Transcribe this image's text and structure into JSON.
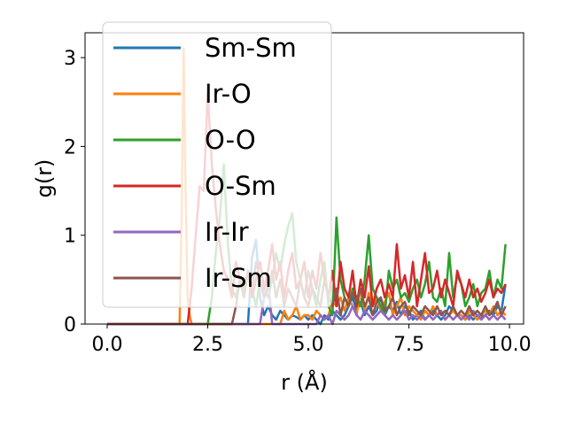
{
  "chart_data": {
    "type": "line",
    "title": "",
    "xlabel": "r (Å)",
    "ylabel": "g(r)",
    "xlim": [
      -0.55,
      10.35
    ],
    "ylim": [
      0,
      3.28
    ],
    "xticks": [
      0.0,
      2.5,
      5.0,
      7.5,
      10.0
    ],
    "xtick_labels": [
      "0.0",
      "2.5",
      "5.0",
      "7.5",
      "10.0"
    ],
    "yticks": [
      0,
      1,
      2,
      3
    ],
    "ytick_labels": [
      "0",
      "1",
      "2",
      "3"
    ],
    "grid": false,
    "legend_position": "upper-left",
    "series": [
      {
        "name": "Sm-Sm",
        "color": "#1f77b4",
        "x": [
          0,
          3.5,
          3.6,
          3.7,
          3.8,
          3.9,
          4.0,
          4.1,
          4.2,
          4.3,
          4.4,
          4.5,
          4.6,
          4.7,
          4.8,
          4.9,
          5.0,
          5.1,
          5.2,
          5.3,
          5.4,
          5.5,
          5.6,
          5.7,
          5.8,
          5.9,
          6.0,
          6.1,
          6.2,
          6.3,
          6.4,
          6.5,
          6.6,
          6.7,
          6.8,
          6.9,
          7.0,
          7.1,
          7.2,
          7.3,
          7.4,
          7.5,
          7.6,
          7.7,
          7.8,
          7.9,
          8.0,
          8.1,
          8.2,
          8.3,
          8.4,
          8.5,
          8.6,
          8.7,
          8.8,
          8.9,
          9.0,
          9.1,
          9.2,
          9.3,
          9.4,
          9.5,
          9.6,
          9.7,
          9.8,
          9.9
        ],
        "y": [
          0,
          0,
          0.75,
          0.95,
          0.3,
          0.1,
          0.2,
          0.1,
          0.05,
          0.15,
          0.1,
          0.05,
          0.1,
          0.08,
          0.05,
          0.1,
          0.05,
          0.1,
          0.05,
          0.0,
          0.1,
          0.05,
          0.15,
          0.1,
          0.05,
          0.1,
          0.2,
          0.3,
          0.15,
          0.25,
          0.1,
          0.2,
          0.1,
          0.15,
          0.3,
          0.1,
          0.2,
          0.15,
          0.25,
          0.1,
          0.2,
          0.15,
          0.05,
          0.1,
          0.15,
          0.05,
          0.1,
          0.15,
          0.1,
          0.05,
          0.1,
          0.2,
          0.15,
          0.1,
          0.1,
          0.05,
          0.1,
          0.05,
          0.1,
          0.08,
          0.1,
          0.15,
          0.1,
          0.2,
          0.15,
          0.45
        ]
      },
      {
        "name": "Ir-O",
        "color": "#ff7f0e",
        "x": [
          0,
          1.8,
          1.85,
          1.9,
          1.95,
          2.0,
          2.05,
          2.1,
          4.3,
          4.4,
          4.5,
          4.6,
          4.7,
          4.8,
          4.9,
          5.0,
          5.1,
          5.2,
          5.3,
          5.4,
          5.5,
          5.6,
          5.7,
          5.8,
          5.9,
          6.0,
          6.1,
          6.2,
          6.3,
          6.4,
          6.5,
          6.6,
          6.7,
          6.8,
          6.9,
          7.0,
          7.1,
          7.2,
          7.3,
          7.4,
          7.5,
          7.6,
          7.7,
          7.8,
          7.9,
          8.0,
          8.1,
          8.2,
          8.3,
          8.4,
          8.5,
          8.6,
          8.7,
          8.8,
          8.9,
          9.0,
          9.1,
          9.2,
          9.3,
          9.4,
          9.5,
          9.6,
          9.7,
          9.8,
          9.9
        ],
        "y": [
          0,
          0,
          1.2,
          3.1,
          1.5,
          0.3,
          0.1,
          0,
          0,
          0.15,
          0.05,
          0.1,
          0.2,
          0.05,
          0.1,
          0.1,
          0.05,
          0.15,
          0.1,
          0.05,
          0.1,
          0.25,
          0.2,
          0.3,
          0.15,
          0.3,
          0.2,
          0.1,
          0.4,
          0.15,
          0.35,
          0.2,
          0.3,
          0.15,
          0.25,
          0.35,
          0.1,
          0.2,
          0.3,
          0.1,
          0.2,
          0.15,
          0.1,
          0.05,
          0.15,
          0.1,
          0.2,
          0.1,
          0.15,
          0.05,
          0.1,
          0.15,
          0.1,
          0.1,
          0.05,
          0.15,
          0.1,
          0.05,
          0.1,
          0.15,
          0.1,
          0.2,
          0.1,
          0.15,
          0.1
        ]
      },
      {
        "name": "O-O",
        "color": "#2ca02c",
        "x": [
          0,
          2.5,
          2.6,
          2.7,
          2.8,
          2.9,
          3.0,
          3.1,
          3.2,
          3.3,
          3.4,
          3.5,
          3.6,
          3.7,
          3.8,
          3.9,
          4.0,
          4.1,
          4.2,
          4.3,
          4.4,
          4.5,
          4.6,
          4.7,
          4.8,
          4.9,
          5.0,
          5.1,
          5.2,
          5.3,
          5.4,
          5.5,
          5.6,
          5.7,
          5.8,
          5.9,
          6.0,
          6.1,
          6.2,
          6.3,
          6.4,
          6.5,
          6.6,
          6.7,
          6.8,
          6.9,
          7.0,
          7.1,
          7.2,
          7.3,
          7.4,
          7.5,
          7.6,
          7.7,
          7.8,
          7.9,
          8.0,
          8.1,
          8.2,
          8.3,
          8.4,
          8.5,
          8.6,
          8.7,
          8.8,
          8.9,
          9.0,
          9.1,
          9.2,
          9.3,
          9.4,
          9.5,
          9.6,
          9.7,
          9.8,
          9.9
        ],
        "y": [
          0,
          0,
          0.3,
          0.8,
          1.2,
          1.8,
          0.9,
          0.4,
          0.3,
          0.5,
          0.3,
          0.6,
          0.4,
          0.2,
          0.5,
          0.4,
          0.3,
          0.5,
          0.8,
          0.6,
          0.9,
          1.1,
          1.25,
          0.7,
          0.5,
          0.3,
          0.6,
          0.4,
          0.2,
          0.5,
          0.7,
          0.2,
          0.1,
          1.2,
          0.5,
          0.3,
          0.2,
          0.4,
          0.3,
          0.2,
          0.5,
          1.0,
          0.4,
          0.3,
          0.2,
          0.1,
          0.6,
          0.4,
          0.5,
          0.3,
          0.35,
          0.25,
          0.4,
          0.5,
          0.3,
          0.45,
          0.7,
          0.3,
          0.25,
          0.4,
          0.2,
          0.8,
          0.3,
          0.55,
          0.45,
          0.2,
          0.3,
          0.45,
          0.2,
          0.35,
          0.4,
          0.6,
          0.3,
          0.5,
          0.4,
          0.9
        ]
      },
      {
        "name": "O-Sm",
        "color": "#d62728",
        "x": [
          0,
          2.0,
          2.1,
          2.2,
          2.3,
          2.4,
          2.5,
          2.6,
          2.7,
          2.8,
          2.9,
          3.0,
          3.1,
          3.2,
          3.3,
          3.4,
          3.5,
          3.6,
          3.7,
          3.8,
          3.9,
          4.0,
          4.1,
          4.2,
          4.3,
          4.4,
          4.5,
          4.6,
          4.7,
          4.8,
          4.9,
          5.0,
          5.1,
          5.2,
          5.3,
          5.4,
          5.5,
          5.6,
          5.7,
          5.8,
          5.9,
          6.0,
          6.1,
          6.2,
          6.3,
          6.4,
          6.5,
          6.6,
          6.7,
          6.8,
          6.9,
          7.0,
          7.1,
          7.2,
          7.3,
          7.4,
          7.5,
          7.6,
          7.7,
          7.8,
          7.9,
          8.0,
          8.1,
          8.2,
          8.3,
          8.4,
          8.5,
          8.6,
          8.7,
          8.8,
          8.9,
          9.0,
          9.1,
          9.2,
          9.3,
          9.4,
          9.5,
          9.6,
          9.7,
          9.8,
          9.9
        ],
        "y": [
          0,
          0,
          0.4,
          1.0,
          1.55,
          1.5,
          2.6,
          1.8,
          1.3,
          0.9,
          0.6,
          0.5,
          0.3,
          0.7,
          0.5,
          0.4,
          0.6,
          0.3,
          0.5,
          0.7,
          0.4,
          0.6,
          0.9,
          0.5,
          0.7,
          0.3,
          0.6,
          0.8,
          0.4,
          0.5,
          0.7,
          0.3,
          0.6,
          0.4,
          0.8,
          0.5,
          0.3,
          0.6,
          0.2,
          0.7,
          0.4,
          0.3,
          0.6,
          0.2,
          0.5,
          0.3,
          0.65,
          0.2,
          0.4,
          0.5,
          0.3,
          0.45,
          0.3,
          0.9,
          0.4,
          0.55,
          0.3,
          0.7,
          0.2,
          0.5,
          0.8,
          0.35,
          0.4,
          0.6,
          0.3,
          0.5,
          0.35,
          0.2,
          0.6,
          0.45,
          0.3,
          0.5,
          0.3,
          0.4,
          0.25,
          0.35,
          0.5,
          0.3,
          0.4,
          0.35,
          0.45
        ]
      },
      {
        "name": "Ir-Ir",
        "color": "#9467bd",
        "x": [
          0,
          3.8,
          3.9,
          4.0,
          4.1,
          5.2,
          5.3,
          5.4,
          5.5,
          5.6,
          5.7,
          5.8,
          5.9,
          6.0,
          6.1,
          6.2,
          6.3,
          6.4,
          6.5,
          6.6,
          6.7,
          6.8,
          6.9,
          7.0,
          7.1,
          7.2,
          7.3,
          7.4,
          7.5,
          7.6,
          7.7,
          7.8,
          7.9,
          8.0,
          8.1,
          8.2,
          8.3,
          8.4,
          8.5,
          8.6,
          8.7,
          8.8,
          8.9,
          9.0,
          9.1,
          9.2,
          9.3,
          9.4,
          9.5,
          9.6,
          9.7,
          9.8,
          9.9
        ],
        "y": [
          0,
          0,
          0.3,
          0.5,
          0,
          0,
          0.1,
          0.05,
          0.1,
          0.0,
          0.15,
          0.1,
          0.05,
          0.1,
          0.2,
          0.1,
          0.05,
          0.15,
          0.1,
          0.05,
          0.1,
          0.15,
          0.1,
          0.05,
          0.1,
          0.05,
          0.1,
          0.15,
          0.05,
          0.1,
          0.05,
          0.1,
          0.05,
          0.1,
          0.05,
          0.1,
          0.15,
          0.05,
          0.1,
          0.05,
          0.1,
          0.05,
          0.1,
          0.05,
          0.15,
          0.1,
          0.05,
          0.1,
          0.05,
          0.1,
          0.05,
          0.1,
          0.05
        ]
      },
      {
        "name": "Ir-Sm",
        "color": "#8c564b",
        "x": [
          0,
          3.1,
          3.2,
          3.3,
          3.4,
          3.5,
          3.6,
          3.7,
          3.8,
          3.9,
          4.0,
          4.1,
          4.2,
          4.3,
          4.4,
          4.5,
          4.6,
          4.7,
          4.8,
          4.9,
          5.0,
          5.1,
          5.2,
          5.3,
          5.4,
          5.5,
          5.6,
          5.7,
          5.8,
          5.9,
          6.0,
          6.1,
          6.2,
          6.3,
          6.4,
          6.5,
          6.6,
          6.7,
          6.8,
          6.9,
          7.0,
          7.1,
          7.2,
          7.3,
          7.4,
          7.5,
          7.6,
          7.7,
          7.8,
          7.9,
          8.0,
          8.1,
          8.2,
          8.3,
          8.4,
          8.5,
          8.6,
          8.7,
          8.8,
          8.9,
          9.0,
          9.1,
          9.2,
          9.3,
          9.4,
          9.5,
          9.6,
          9.7,
          9.8,
          9.9
        ],
        "y": [
          0,
          0,
          0.2,
          0.5,
          0.3,
          0.6,
          0.4,
          0.7,
          0.5,
          0.3,
          0.4,
          0.6,
          0.3,
          0.5,
          0.2,
          0.4,
          0.3,
          0.2,
          0.5,
          0.3,
          0.2,
          0.4,
          0.3,
          0.2,
          0.5,
          0.3,
          0.2,
          0.4,
          0.1,
          0.3,
          0.2,
          0.35,
          0.25,
          0.4,
          0.2,
          0.3,
          0.1,
          0.25,
          0.3,
          0.15,
          0.2,
          0.3,
          0.1,
          0.2,
          0.25,
          0.1,
          0.2,
          0.15,
          0.1,
          0.2,
          0.15,
          0.1,
          0.2,
          0.1,
          0.15,
          0.1,
          0.2,
          0.1,
          0.15,
          0.1,
          0.2,
          0.1,
          0.15,
          0.1,
          0.2,
          0.1,
          0.15,
          0.25,
          0.1,
          0.2
        ]
      }
    ]
  }
}
